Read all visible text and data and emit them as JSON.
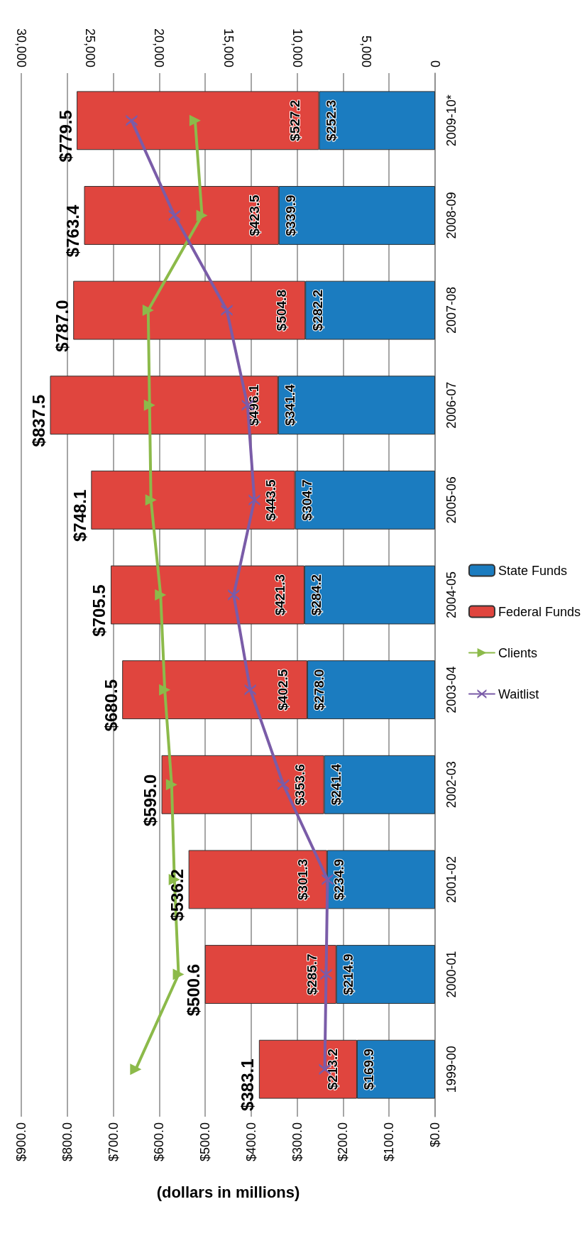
{
  "chart_data": {
    "type": "bar",
    "stacked": true,
    "orientation": "horizontal",
    "xlabel": "(dollars in millions)",
    "categories": [
      "2009-10*",
      "2008-09",
      "2007-08",
      "2006-07",
      "2005-06",
      "2004-05",
      "2003-04",
      "2002-03",
      "2001-02",
      "2000-01",
      "1999-00"
    ],
    "series": [
      {
        "name": "State Funds",
        "color": "#1b7cc0",
        "values": [
          252.3,
          339.9,
          282.2,
          341.4,
          304.7,
          284.2,
          278.0,
          241.4,
          234.9,
          214.9,
          169.9
        ],
        "value_labels": [
          "$252.3",
          "$339.9",
          "$282.2",
          "$341.4",
          "$304.7",
          "$284.2",
          "$278.0",
          "$241.4",
          "$234.9",
          "$214.9",
          "$169.9"
        ]
      },
      {
        "name": "Federal Funds",
        "color": "#e0453e",
        "values": [
          527.2,
          423.5,
          504.8,
          496.1,
          443.5,
          421.3,
          402.5,
          353.6,
          301.3,
          285.7,
          213.2
        ],
        "value_labels": [
          "$527.2",
          "$423.5",
          "$504.8",
          "$496.1",
          "$443.5",
          "$421.3",
          "$402.5",
          "$353.6",
          "$301.3",
          "$285.7",
          "$213.2"
        ]
      },
      {
        "name": "Clients",
        "type": "line",
        "axis": "x2",
        "marker": "triangle",
        "color": "#8cba4a",
        "values": [
          17400,
          16900,
          20800,
          20700,
          20600,
          19900,
          19600,
          19100,
          18900,
          18600,
          21700
        ]
      },
      {
        "name": "Waitlist",
        "type": "line",
        "axis": "x2",
        "marker": "cross",
        "color": "#7a5ca8",
        "values": [
          22000,
          18900,
          15100,
          13600,
          13100,
          14600,
          13400,
          11000,
          7800,
          7900,
          8000
        ]
      }
    ],
    "totals": [
      "$779.5",
      "$763.4",
      "$787.0",
      "$837.5",
      "$748.1",
      "$705.5",
      "$680.5",
      "$595.0",
      "$536.2",
      "$500.6",
      "$383.1"
    ],
    "xlim": [
      900,
      0
    ],
    "xticks": [
      {
        "value": 0,
        "label": "$0.0"
      },
      {
        "value": 100,
        "label": "$100.0"
      },
      {
        "value": 200,
        "label": "$200.0"
      },
      {
        "value": 300,
        "label": "$300.0"
      },
      {
        "value": 400,
        "label": "$400.0"
      },
      {
        "value": 500,
        "label": "$500.0"
      },
      {
        "value": 600,
        "label": "$600.0"
      },
      {
        "value": 700,
        "label": "$700.0"
      },
      {
        "value": 800,
        "label": "$800.0"
      },
      {
        "value": 900,
        "label": "$900.0"
      }
    ],
    "x2lim": [
      30000,
      0
    ],
    "x2ticks": [
      0,
      {
        "value": 5000,
        "label": "5,000"
      },
      {
        "value": 10000,
        "label": "10,000"
      },
      {
        "value": 15000,
        "label": "15,000"
      },
      {
        "value": 20000,
        "label": "20,000"
      },
      {
        "value": 25000,
        "label": "25,000"
      },
      {
        "value": 30000,
        "label": "30,000"
      }
    ],
    "grid": "x",
    "legend": "right",
    "line_style": "solid"
  }
}
